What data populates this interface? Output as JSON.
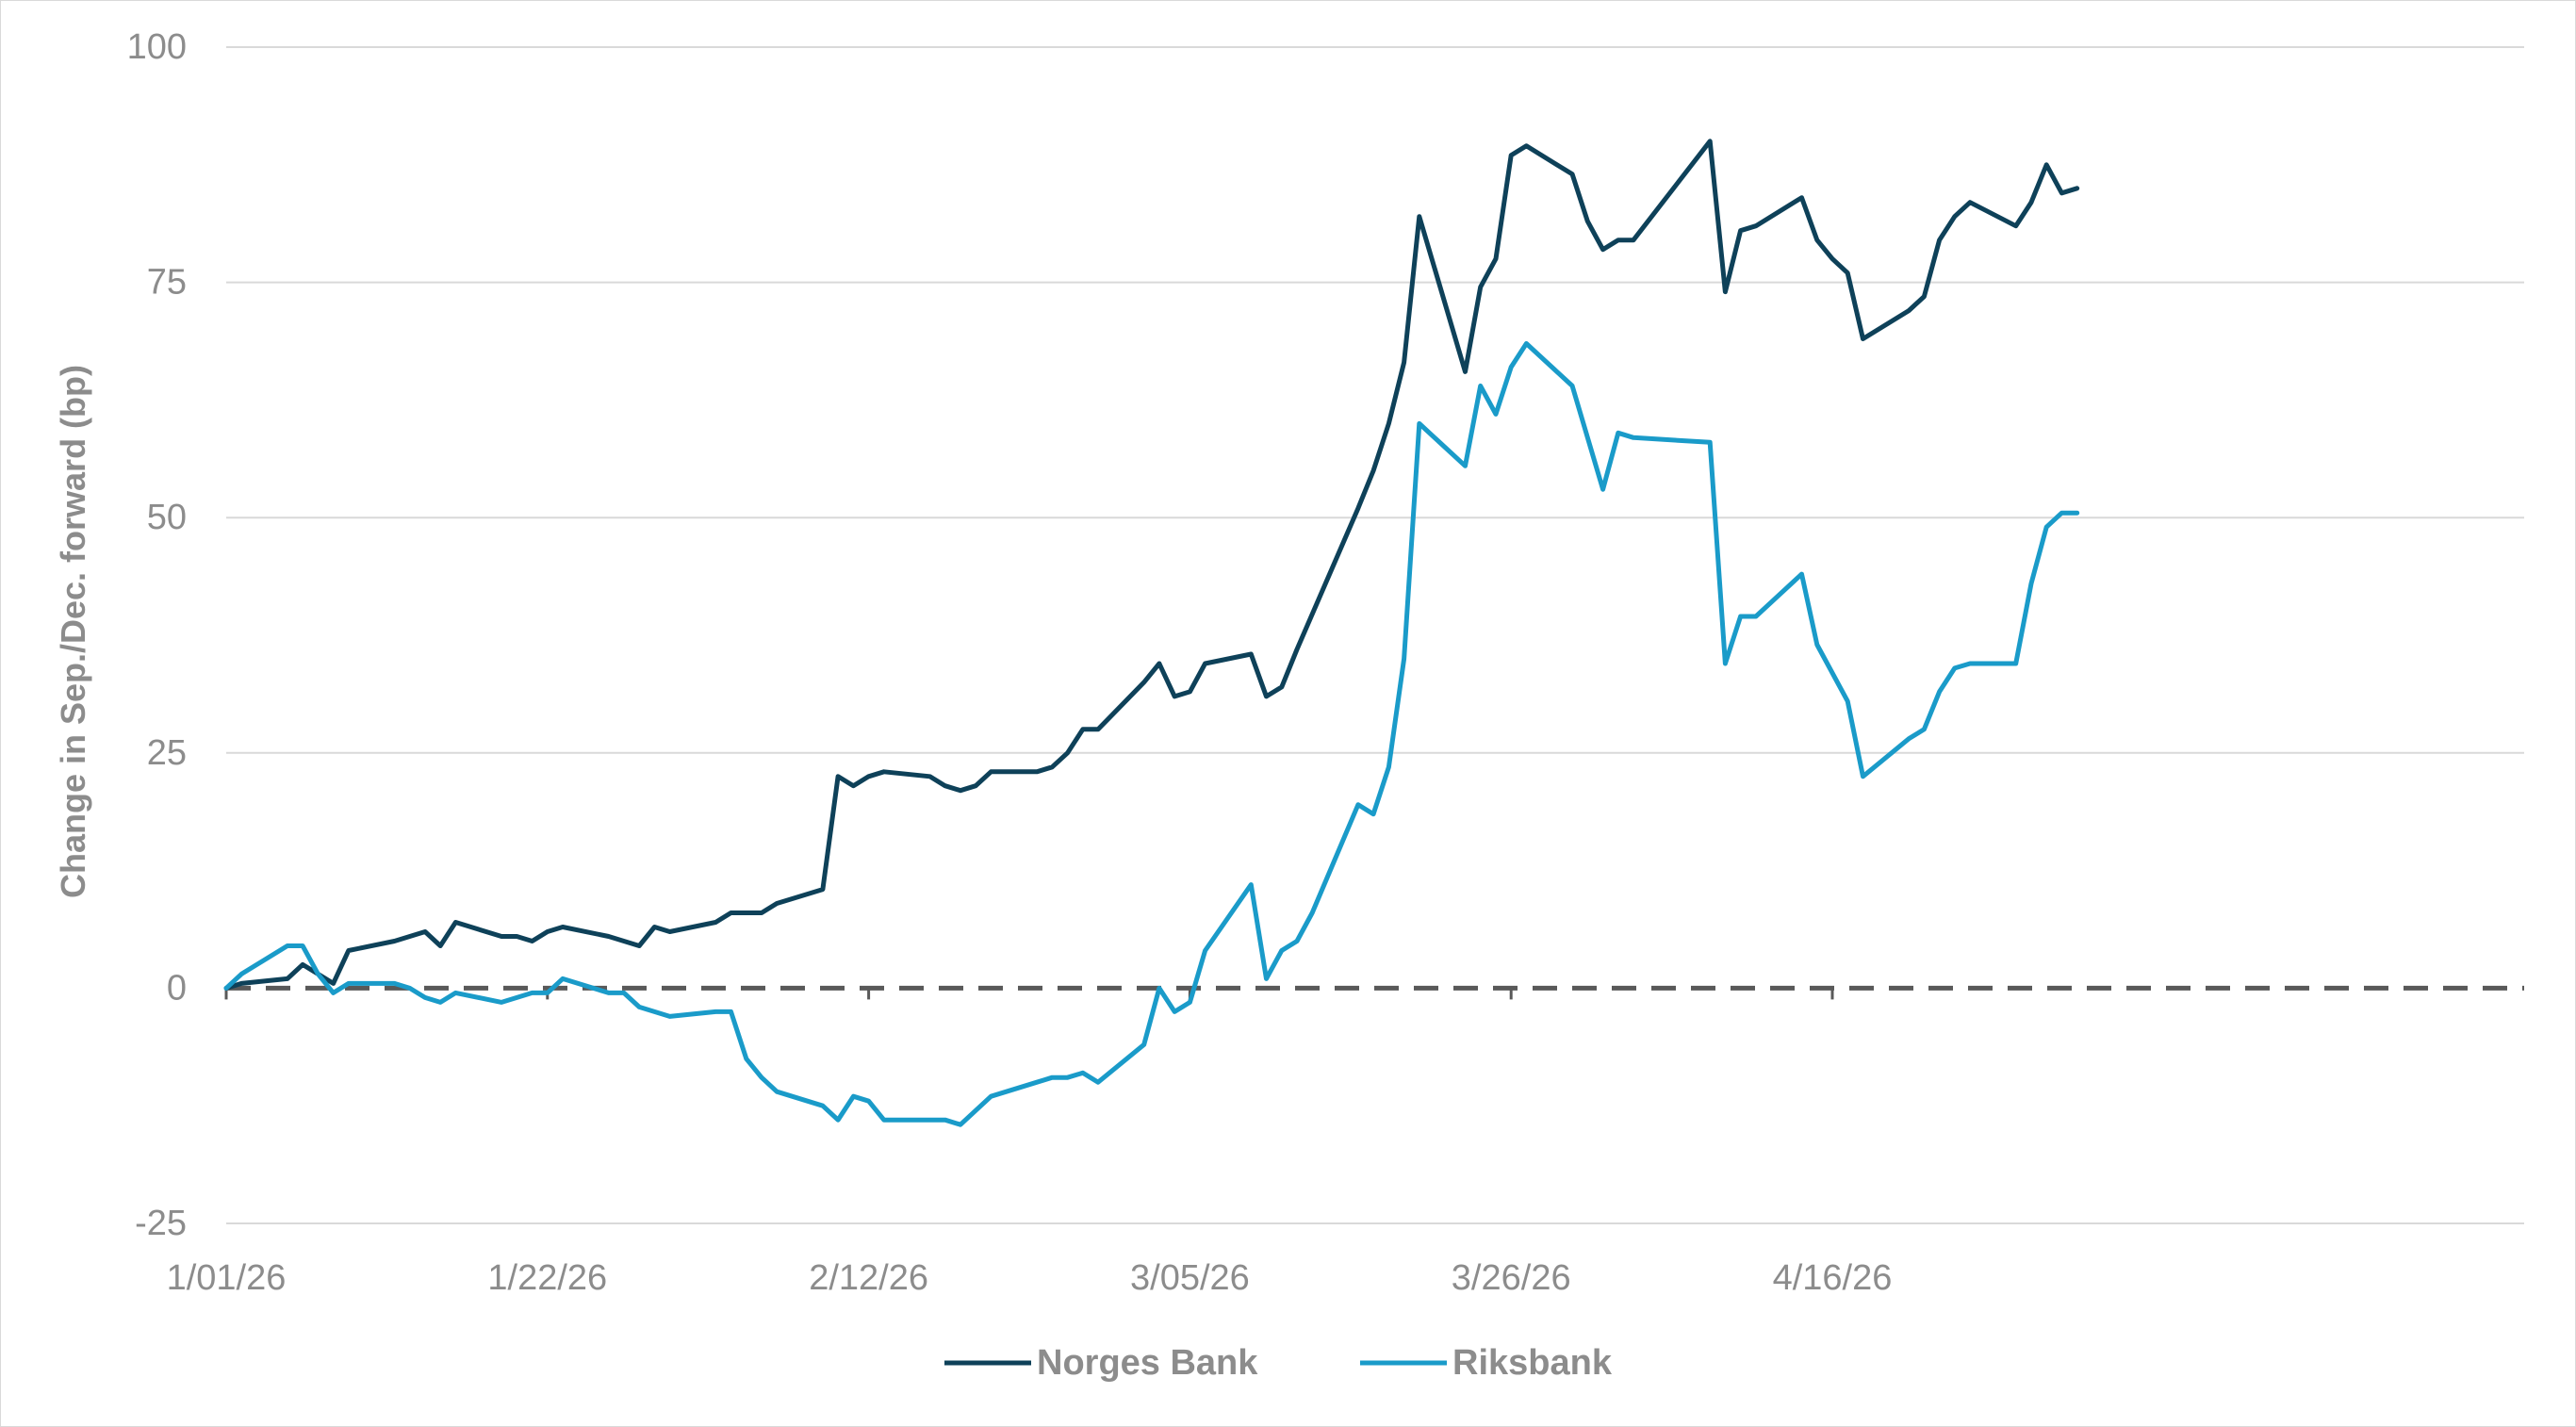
{
  "chart_data": {
    "type": "line",
    "title": "",
    "ylabel": "Change in Sep./Dec. forward (bp)",
    "xlabel": "",
    "ylim": [
      -25,
      100
    ],
    "yticks": [
      -25,
      0,
      25,
      50,
      75,
      100
    ],
    "x_start": "2026-01-01",
    "x_end": "2026-04-30",
    "xticks": [
      {
        "date": "2026-01-01",
        "label": "1/01/26"
      },
      {
        "date": "2026-01-22",
        "label": "1/22/26"
      },
      {
        "date": "2026-02-12",
        "label": "2/12/26"
      },
      {
        "date": "2026-03-05",
        "label": "3/05/26"
      },
      {
        "date": "2026-03-26",
        "label": "3/26/26"
      },
      {
        "date": "2026-04-16",
        "label": "4/16/26"
      }
    ],
    "grid": true,
    "zero_line": "dashed",
    "legend_position": "bottom",
    "series": [
      {
        "name": "Norges Bank",
        "color": "#0e4159",
        "points": [
          [
            "2026-01-01",
            0
          ],
          [
            "2026-01-02",
            0.5
          ],
          [
            "2026-01-05",
            1
          ],
          [
            "2026-01-06",
            2.5
          ],
          [
            "2026-01-07",
            1.5
          ],
          [
            "2026-01-08",
            0.5
          ],
          [
            "2026-01-09",
            4
          ],
          [
            "2026-01-12",
            5
          ],
          [
            "2026-01-14",
            6
          ],
          [
            "2026-01-15",
            4.5
          ],
          [
            "2026-01-16",
            7
          ],
          [
            "2026-01-19",
            5.5
          ],
          [
            "2026-01-20",
            5.5
          ],
          [
            "2026-01-21",
            5
          ],
          [
            "2026-01-22",
            6
          ],
          [
            "2026-01-23",
            6.5
          ],
          [
            "2026-01-26",
            5.5
          ],
          [
            "2026-01-28",
            4.5
          ],
          [
            "2026-01-29",
            6.5
          ],
          [
            "2026-01-30",
            6
          ],
          [
            "2026-02-02",
            7
          ],
          [
            "2026-02-03",
            8
          ],
          [
            "2026-02-05",
            8
          ],
          [
            "2026-02-06",
            9
          ],
          [
            "2026-02-09",
            10.5
          ],
          [
            "2026-02-10",
            22.5
          ],
          [
            "2026-02-11",
            21.5
          ],
          [
            "2026-02-12",
            22.5
          ],
          [
            "2026-02-13",
            23
          ],
          [
            "2026-02-16",
            22.5
          ],
          [
            "2026-02-17",
            21.5
          ],
          [
            "2026-02-18",
            21
          ],
          [
            "2026-02-19",
            21.5
          ],
          [
            "2026-02-20",
            23
          ],
          [
            "2026-02-23",
            23
          ],
          [
            "2026-02-24",
            23.5
          ],
          [
            "2026-02-25",
            25
          ],
          [
            "2026-02-26",
            27.5
          ],
          [
            "2026-02-27",
            27.5
          ],
          [
            "2026-03-02",
            32.5
          ],
          [
            "2026-03-03",
            34.5
          ],
          [
            "2026-03-04",
            31
          ],
          [
            "2026-03-05",
            31.5
          ],
          [
            "2026-03-06",
            34.5
          ],
          [
            "2026-03-09",
            35.5
          ],
          [
            "2026-03-10",
            31
          ],
          [
            "2026-03-11",
            32
          ],
          [
            "2026-03-12",
            36
          ],
          [
            "2026-03-16",
            51
          ],
          [
            "2026-03-17",
            55
          ],
          [
            "2026-03-18",
            60
          ],
          [
            "2026-03-19",
            66.5
          ],
          [
            "2026-03-20",
            82
          ],
          [
            "2026-03-23",
            65.5
          ],
          [
            "2026-03-24",
            74.5
          ],
          [
            "2026-03-25",
            77.5
          ],
          [
            "2026-03-26",
            88.5
          ],
          [
            "2026-03-27",
            89.5
          ],
          [
            "2026-03-30",
            86.5
          ],
          [
            "2026-03-31",
            81.5
          ],
          [
            "2026-04-01",
            78.5
          ],
          [
            "2026-04-02",
            79.5
          ],
          [
            "2026-04-03",
            79.5
          ],
          [
            "2026-04-08",
            90
          ],
          [
            "2026-04-09",
            74
          ],
          [
            "2026-04-10",
            80.5
          ],
          [
            "2026-04-11",
            81
          ],
          [
            "2026-04-14",
            84
          ],
          [
            "2026-04-15",
            79.5
          ],
          [
            "2026-04-16",
            77.5
          ],
          [
            "2026-04-17",
            76
          ],
          [
            "2026-04-18",
            69
          ],
          [
            "2026-04-21",
            72
          ],
          [
            "2026-04-22",
            73.5
          ],
          [
            "2026-04-23",
            79.5
          ],
          [
            "2026-04-24",
            82
          ],
          [
            "2026-04-25",
            83.5
          ],
          [
            "2026-04-28",
            81
          ],
          [
            "2026-04-29",
            83.5
          ],
          [
            "2026-04-30",
            87.5
          ],
          [
            "2026-05-01",
            84.5
          ],
          [
            "2026-05-02",
            85
          ]
        ]
      },
      {
        "name": "Riksbank",
        "color": "#1a9bc9",
        "points": [
          [
            "2026-01-01",
            0
          ],
          [
            "2026-01-02",
            1.5
          ],
          [
            "2026-01-03",
            2.5
          ],
          [
            "2026-01-05",
            4.5
          ],
          [
            "2026-01-06",
            4.5
          ],
          [
            "2026-01-07",
            1.5
          ],
          [
            "2026-01-08",
            -0.5
          ],
          [
            "2026-01-09",
            0.5
          ],
          [
            "2026-01-12",
            0.5
          ],
          [
            "2026-01-13",
            0
          ],
          [
            "2026-01-14",
            -1
          ],
          [
            "2026-01-15",
            -1.5
          ],
          [
            "2026-01-16",
            -0.5
          ],
          [
            "2026-01-19",
            -1.5
          ],
          [
            "2026-01-21",
            -0.5
          ],
          [
            "2026-01-22",
            -0.5
          ],
          [
            "2026-01-23",
            1
          ],
          [
            "2026-01-26",
            -0.5
          ],
          [
            "2026-01-27",
            -0.5
          ],
          [
            "2026-01-28",
            -2
          ],
          [
            "2026-01-30",
            -3
          ],
          [
            "2026-02-02",
            -2.5
          ],
          [
            "2026-02-03",
            -2.5
          ],
          [
            "2026-02-04",
            -7.5
          ],
          [
            "2026-02-05",
            -9.5
          ],
          [
            "2026-02-06",
            -11
          ],
          [
            "2026-02-09",
            -12.5
          ],
          [
            "2026-02-10",
            -14
          ],
          [
            "2026-02-11",
            -11.5
          ],
          [
            "2026-02-12",
            -12
          ],
          [
            "2026-02-13",
            -14
          ],
          [
            "2026-02-16",
            -14
          ],
          [
            "2026-02-17",
            -14
          ],
          [
            "2026-02-18",
            -14.5
          ],
          [
            "2026-02-20",
            -11.5
          ],
          [
            "2026-02-23",
            -10
          ],
          [
            "2026-02-24",
            -9.5
          ],
          [
            "2026-02-25",
            -9.5
          ],
          [
            "2026-02-26",
            -9
          ],
          [
            "2026-02-27",
            -10
          ],
          [
            "2026-03-02",
            -6
          ],
          [
            "2026-03-03",
            0
          ],
          [
            "2026-03-04",
            -2.5
          ],
          [
            "2026-03-05",
            -1.5
          ],
          [
            "2026-03-06",
            4
          ],
          [
            "2026-03-09",
            11
          ],
          [
            "2026-03-10",
            1
          ],
          [
            "2026-03-11",
            4
          ],
          [
            "2026-03-12",
            5
          ],
          [
            "2026-03-13",
            8
          ],
          [
            "2026-03-16",
            19.5
          ],
          [
            "2026-03-17",
            18.5
          ],
          [
            "2026-03-18",
            23.5
          ],
          [
            "2026-03-19",
            35
          ],
          [
            "2026-03-20",
            60
          ],
          [
            "2026-03-23",
            55.5
          ],
          [
            "2026-03-24",
            64
          ],
          [
            "2026-03-25",
            61
          ],
          [
            "2026-03-26",
            66
          ],
          [
            "2026-03-27",
            68.5
          ],
          [
            "2026-03-30",
            64
          ],
          [
            "2026-04-01",
            53
          ],
          [
            "2026-04-02",
            59
          ],
          [
            "2026-04-03",
            58.5
          ],
          [
            "2026-04-08",
            58
          ],
          [
            "2026-04-09",
            34.5
          ],
          [
            "2026-04-10",
            39.5
          ],
          [
            "2026-04-11",
            39.5
          ],
          [
            "2026-04-14",
            44
          ],
          [
            "2026-04-15",
            36.5
          ],
          [
            "2026-04-17",
            30.5
          ],
          [
            "2026-04-18",
            22.5
          ],
          [
            "2026-04-21",
            26.5
          ],
          [
            "2026-04-22",
            27.5
          ],
          [
            "2026-04-23",
            31.5
          ],
          [
            "2026-04-24",
            34
          ],
          [
            "2026-04-25",
            34.5
          ],
          [
            "2026-04-28",
            34.5
          ],
          [
            "2026-04-29",
            43
          ],
          [
            "2026-04-30",
            49
          ],
          [
            "2026-05-01",
            50.5
          ],
          [
            "2026-05-02",
            50.5
          ]
        ]
      }
    ]
  }
}
